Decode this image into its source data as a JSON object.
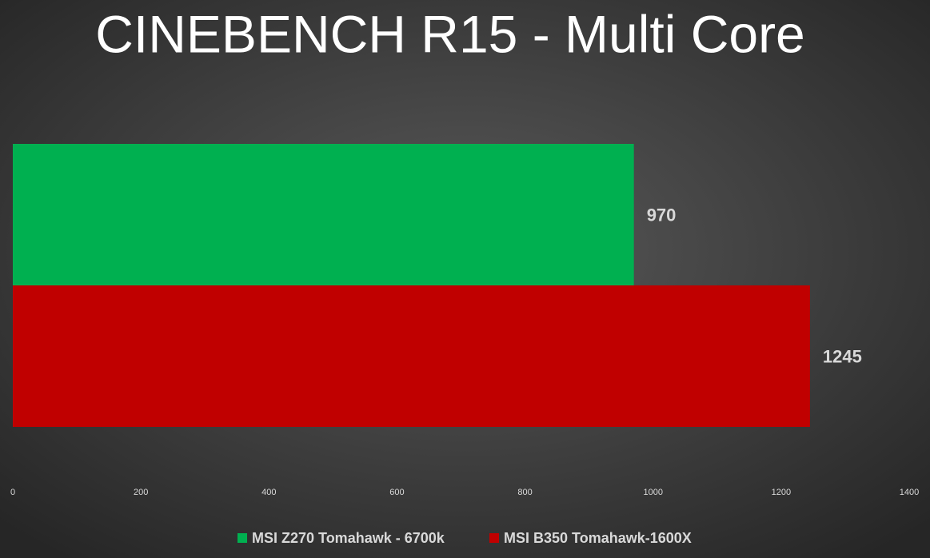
{
  "chart_data": {
    "type": "bar",
    "orientation": "horizontal",
    "title": "CINEBENCH R15 - Multi Core",
    "categories": [
      null
    ],
    "series": [
      {
        "name": "MSI Z270 Tomahawk - 6700k",
        "color": "#00b050",
        "values": [
          970
        ]
      },
      {
        "name": "MSI B350 Tomahawk-1600X",
        "color": "#c00000",
        "values": [
          1245
        ]
      }
    ],
    "xlim": [
      0,
      1400
    ],
    "xticks": [
      0,
      200,
      400,
      600,
      800,
      1000,
      1200,
      1400
    ],
    "grid": false,
    "legend": "bottom"
  }
}
